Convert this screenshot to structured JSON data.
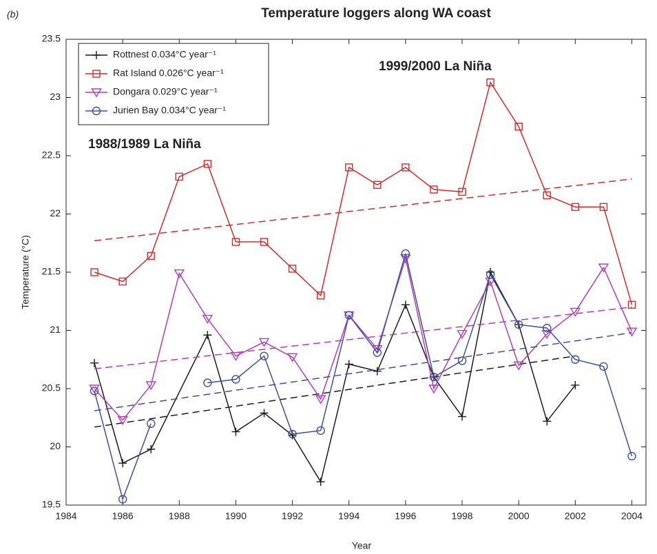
{
  "chart_data": {
    "type": "line",
    "title": "Temperature loggers along WA coast",
    "panel_label": "(b)",
    "x_label": "Year",
    "y_label": "Temperature (°C)",
    "annotations": [
      "1988/1989 La Niña",
      "1999/2000 La Niña"
    ],
    "annotation_color": "#e8201c",
    "xlim": [
      1984,
      2004.5
    ],
    "xticks": [
      1984,
      1986,
      1988,
      1990,
      1992,
      1994,
      1996,
      1998,
      2000,
      2002,
      2004
    ],
    "ylim": [
      19.5,
      23.5
    ],
    "yticks": [
      19.5,
      20,
      20.5,
      21,
      21.5,
      22,
      22.5,
      23,
      23.5
    ],
    "legend": "upper left",
    "series": [
      {
        "name": "Rottnest 0.034°C year⁻¹",
        "color": "#1a1a1a",
        "marker": "plus",
        "x": [
          1985,
          1986,
          1987,
          1989,
          1990,
          1991,
          1992,
          1993,
          1994,
          1995,
          1996,
          1997,
          1998,
          1999,
          2000,
          2001,
          2002
        ],
        "values": [
          20.72,
          19.86,
          19.98,
          20.96,
          20.13,
          20.29,
          20.1,
          19.7,
          20.71,
          20.65,
          21.22,
          20.6,
          20.26,
          21.5,
          21.05,
          20.22,
          20.53
        ],
        "trend": {
          "x": [
            1985,
            2002
          ],
          "values": [
            20.17,
            20.78
          ]
        }
      },
      {
        "name": "Rat Island 0.026°C year⁻¹",
        "color": "#d42a2a",
        "marker": "square",
        "x": [
          1985,
          1986,
          1987,
          1988,
          1989,
          1990,
          1991,
          1992,
          1993,
          1994,
          1995,
          1996,
          1997,
          1998,
          1999,
          2000,
          2001,
          2002,
          2003,
          2004
        ],
        "values": [
          21.5,
          21.42,
          21.64,
          22.32,
          22.43,
          21.76,
          21.76,
          21.53,
          21.3,
          22.4,
          22.25,
          22.4,
          22.21,
          22.19,
          23.13,
          22.75,
          22.16,
          22.06,
          22.06,
          21.22
        ],
        "trend": {
          "x": [
            1985,
            2004
          ],
          "values": [
            21.77,
            22.3
          ]
        }
      },
      {
        "name": "Dongara 0.029°C year⁻¹",
        "color": "#b43cb4",
        "marker": "triangle-down",
        "x": [
          1985,
          1986,
          1987,
          1988,
          1989,
          1990,
          1991,
          1992,
          1993,
          1994,
          1995,
          1996,
          1997,
          1998,
          1999,
          2000,
          2001,
          2002,
          2003,
          2004
        ],
        "values": [
          20.5,
          20.23,
          20.53,
          21.49,
          21.1,
          20.78,
          20.9,
          20.77,
          20.41,
          21.13,
          20.84,
          21.62,
          20.5,
          20.97,
          21.42,
          20.7,
          20.97,
          21.16,
          21.54,
          20.99
        ],
        "trend": {
          "x": [
            1985,
            2004
          ],
          "values": [
            20.67,
            21.2
          ]
        }
      },
      {
        "name": "Jurien Bay 0.034°C year⁻¹",
        "color": "#3c4fa0",
        "marker": "circle",
        "x": [
          1985,
          1986,
          1987,
          1988,
          1989,
          1990,
          1991,
          1992,
          1993,
          1994,
          1995,
          1996,
          1997,
          1998,
          1999,
          2000,
          2001,
          2002,
          2003,
          2004
        ],
        "values": [
          20.48,
          19.55,
          20.2,
          null,
          20.55,
          20.58,
          20.78,
          20.11,
          20.14,
          21.13,
          20.81,
          21.66,
          20.6,
          20.74,
          21.48,
          21.05,
          21.02,
          20.75,
          20.69,
          19.92
        ],
        "trend": {
          "x": [
            1985,
            2004
          ],
          "values": [
            20.31,
            20.98
          ]
        }
      }
    ]
  }
}
